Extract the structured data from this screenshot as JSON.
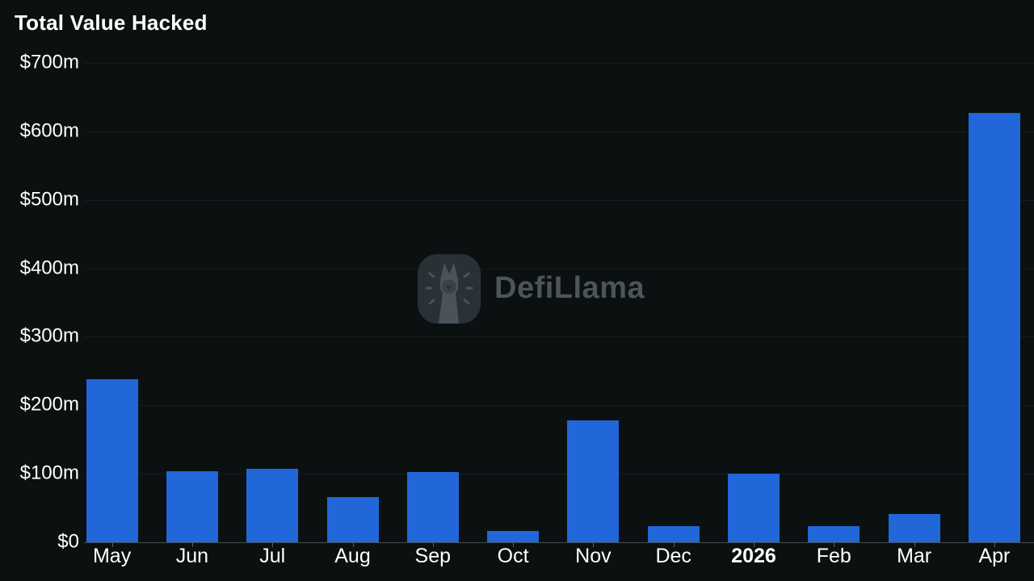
{
  "title": "Total Value Hacked",
  "watermark": {
    "text": "DefiLlama",
    "logo": "defillama-llama-logo"
  },
  "chart_data": {
    "type": "bar",
    "title": "Total Value Hacked",
    "categories": [
      "May",
      "Jun",
      "Jul",
      "Aug",
      "Sep",
      "Oct",
      "Nov",
      "Dec",
      "2026",
      "Feb",
      "Mar",
      "Apr"
    ],
    "values": [
      238,
      104,
      107,
      66,
      103,
      17,
      178,
      23,
      100,
      24,
      41,
      627
    ],
    "bold_category": "2026",
    "units": "USD millions",
    "xlabel": "",
    "ylabel": "",
    "ylim": [
      0,
      700
    ],
    "y_tick_values": [
      700,
      600,
      500,
      400,
      300,
      200,
      100,
      0
    ],
    "y_tick_labels": [
      "$700m",
      "$600m",
      "$500m",
      "$400m",
      "$300m",
      "$200m",
      "$100m",
      "$0"
    ],
    "grid": "horizontal",
    "legend": "none"
  },
  "colors": {
    "background": "#0b1011",
    "bar": "#2267d9",
    "text": "#ffffff",
    "gridline": "#171c1e",
    "axis-line": "#464d53",
    "tick": "#5a6166",
    "watermark-text": "#4d545a",
    "wm-logo-bg": "#2a3136",
    "wm-logo-fg": "#4a525a",
    "wm-logo-muzzle": "#3a4147"
  }
}
